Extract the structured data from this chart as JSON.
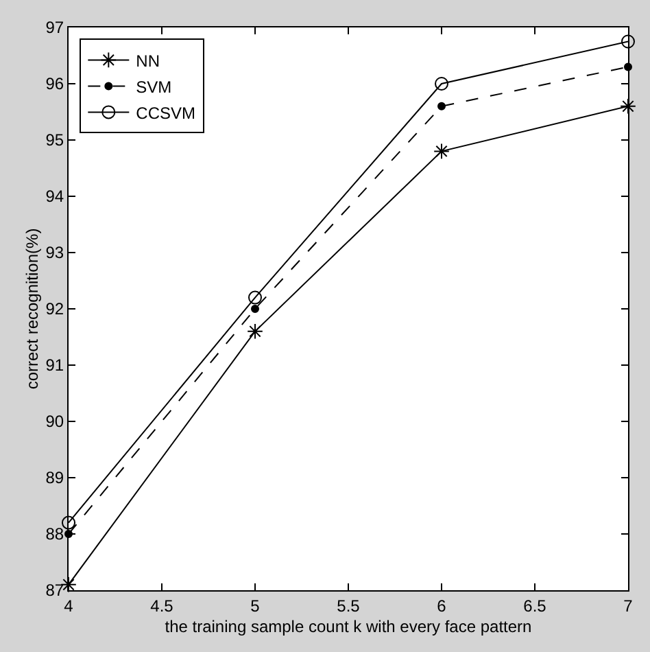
{
  "chart_data": {
    "type": "line",
    "xlabel": "the training sample count k with every face pattern",
    "ylabel": "correct recognition(%)",
    "x": [
      4,
      5,
      6,
      7
    ],
    "series": [
      {
        "name": "NN",
        "color": "#000000",
        "values": [
          87.1,
          91.6,
          94.8,
          95.6
        ],
        "marker": "cross",
        "line_style": "solid"
      },
      {
        "name": "SVM",
        "color": "#000000",
        "values": [
          88.0,
          92.0,
          95.6,
          96.3
        ],
        "marker": "circle",
        "line_style": "dashed"
      },
      {
        "name": "CCSVM",
        "color": "#000000",
        "values": [
          88.2,
          92.2,
          96.0,
          96.75
        ],
        "marker": "circle",
        "line_style": "solid"
      }
    ],
    "xlim": [
      4,
      7
    ],
    "xticks": [
      4,
      4.5,
      5,
      5.5,
      6,
      6.5,
      7
    ],
    "ylim": [
      87,
      97
    ],
    "yticks": [
      87,
      88,
      89,
      90,
      91,
      92,
      93,
      94,
      95,
      96,
      97
    ],
    "legend": "top left"
  }
}
